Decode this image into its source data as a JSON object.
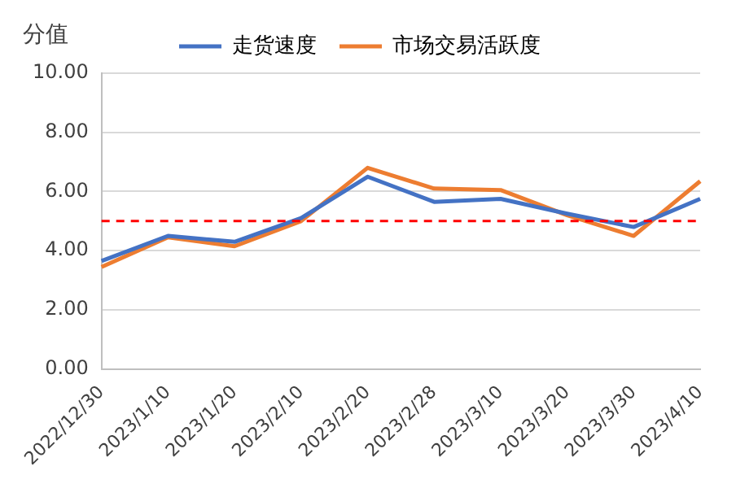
{
  "chart_data": {
    "type": "line",
    "ylabel": "分值",
    "categories": [
      "2022/12/30",
      "2023/1/10",
      "2023/1/20",
      "2023/2/10",
      "2023/2/20",
      "2023/2/28",
      "2023/3/10",
      "2023/3/20",
      "2023/3/30",
      "2023/4/10"
    ],
    "series": [
      {
        "name": "走货速度",
        "color": "#4472c4",
        "values": [
          3.65,
          4.5,
          4.3,
          5.1,
          6.5,
          5.65,
          5.75,
          5.25,
          4.8,
          5.75
        ]
      },
      {
        "name": "市场交易活跃度",
        "color": "#ed7d31",
        "values": [
          3.45,
          4.45,
          4.15,
          5.0,
          6.8,
          6.1,
          6.05,
          5.2,
          4.5,
          6.35
        ]
      }
    ],
    "ylim": [
      0,
      10
    ],
    "yticks": [
      {
        "value": 0,
        "label": "0.00"
      },
      {
        "value": 2,
        "label": "2.00"
      },
      {
        "value": 4,
        "label": "4.00"
      },
      {
        "value": 6,
        "label": "6.00"
      },
      {
        "value": 8,
        "label": "8.00"
      },
      {
        "value": 10,
        "label": "10.00"
      }
    ],
    "ref_lines": [
      {
        "axis": "y",
        "value": 5,
        "color": "#ff0000",
        "line_style": "dashed"
      }
    ],
    "grid": "y",
    "legend": "top",
    "marker": "none",
    "line_style": "solid"
  }
}
